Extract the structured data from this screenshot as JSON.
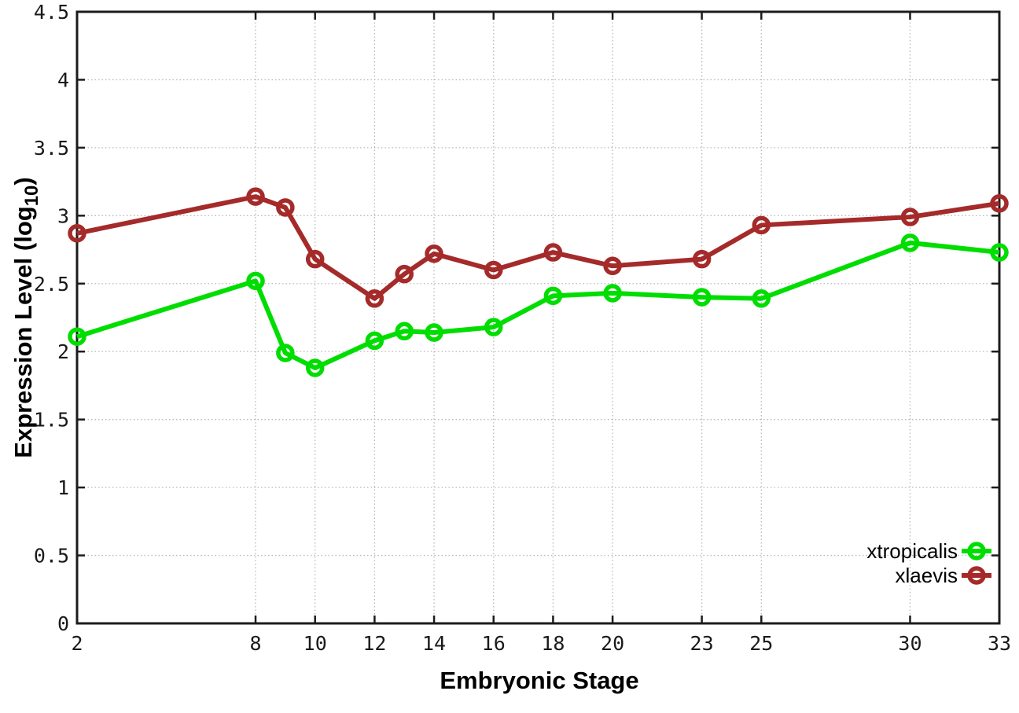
{
  "chart_data": {
    "type": "line",
    "title": "",
    "xlabel": "Embryonic Stage",
    "ylabel": "Expression Level (log10)",
    "ylabel_parts": {
      "prefix": "Expression Level (log",
      "sub": "10",
      "suffix": ")"
    },
    "xlim": [
      2,
      33
    ],
    "ylim": [
      0,
      4.5
    ],
    "x_ticks": [
      2,
      8,
      10,
      12,
      14,
      16,
      18,
      20,
      23,
      25,
      30,
      33
    ],
    "y_ticks": [
      0,
      0.5,
      1,
      1.5,
      2,
      2.5,
      3,
      3.5,
      4,
      4.5
    ],
    "grid": true,
    "legend_position": "bottom-right-inside",
    "x": [
      2,
      8,
      9,
      10,
      12,
      13,
      14,
      16,
      18,
      20,
      23,
      25,
      30,
      33
    ],
    "series": [
      {
        "name": "xtropicalis",
        "color": "#00dd00",
        "marker": "open-circle",
        "values": [
          2.11,
          2.52,
          1.99,
          1.88,
          2.08,
          2.15,
          2.14,
          2.18,
          2.41,
          2.43,
          2.4,
          2.39,
          2.8,
          2.73
        ]
      },
      {
        "name": "xlaevis",
        "color": "#a52a2a",
        "marker": "open-circle",
        "values": [
          2.87,
          3.14,
          3.06,
          2.68,
          2.39,
          2.57,
          2.72,
          2.6,
          2.73,
          2.63,
          2.68,
          2.93,
          2.99,
          3.09
        ]
      }
    ]
  },
  "colors": {
    "background": "#ffffff",
    "grid": "#b9b9b9",
    "axis": "#1c1c1c",
    "text": "#000000"
  }
}
